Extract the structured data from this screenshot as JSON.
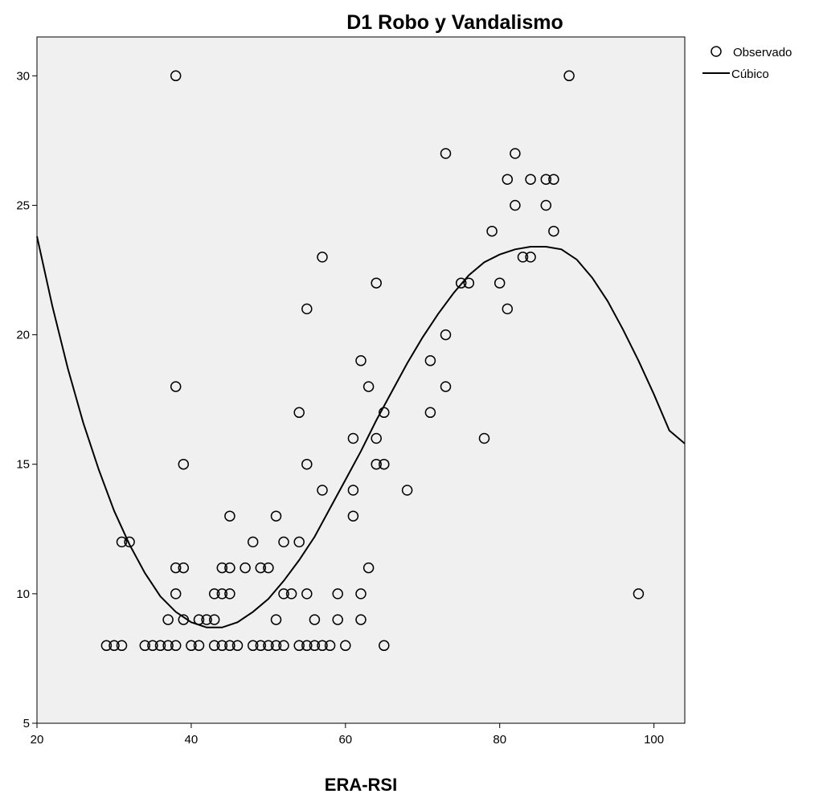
{
  "chart_data": {
    "type": "scatter",
    "title": "D1 Robo y Vandalismo",
    "xlabel": "ERA-RSI",
    "ylabel": "",
    "xlim": [
      20,
      104
    ],
    "ylim": [
      5,
      31.5
    ],
    "xticks": [
      20,
      40,
      60,
      80,
      100
    ],
    "yticks": [
      5,
      10,
      15,
      20,
      25,
      30
    ],
    "grid": false,
    "legend_position": "top-right, outside plot",
    "legend": [
      {
        "label": "Observado",
        "marker": "open-circle"
      },
      {
        "label": "Cúbico",
        "marker": "line"
      }
    ],
    "colors": {
      "plot_background": "#f0f0f0",
      "marker": "#000000",
      "line": "#000000"
    },
    "series": [
      {
        "name": "Observado",
        "type": "scatter",
        "points": [
          [
            29,
            8
          ],
          [
            30,
            8
          ],
          [
            31,
            8
          ],
          [
            34,
            8
          ],
          [
            35,
            8
          ],
          [
            36,
            8
          ],
          [
            37,
            8
          ],
          [
            38,
            8
          ],
          [
            40,
            8
          ],
          [
            41,
            8
          ],
          [
            43,
            8
          ],
          [
            44,
            8
          ],
          [
            45,
            8
          ],
          [
            46,
            8
          ],
          [
            48,
            8
          ],
          [
            49,
            8
          ],
          [
            50,
            8
          ],
          [
            51,
            8
          ],
          [
            52,
            8
          ],
          [
            54,
            8
          ],
          [
            55,
            8
          ],
          [
            56,
            8
          ],
          [
            57,
            8
          ],
          [
            58,
            8
          ],
          [
            60,
            8
          ],
          [
            65,
            8
          ],
          [
            37,
            9
          ],
          [
            39,
            9
          ],
          [
            41,
            9
          ],
          [
            42,
            9
          ],
          [
            43,
            9
          ],
          [
            51,
            9
          ],
          [
            56,
            9
          ],
          [
            59,
            9
          ],
          [
            62,
            9
          ],
          [
            38,
            10
          ],
          [
            43,
            10
          ],
          [
            44,
            10
          ],
          [
            45,
            10
          ],
          [
            52,
            10
          ],
          [
            53,
            10
          ],
          [
            55,
            10
          ],
          [
            59,
            10
          ],
          [
            62,
            10
          ],
          [
            98,
            10
          ],
          [
            38,
            11
          ],
          [
            39,
            11
          ],
          [
            44,
            11
          ],
          [
            45,
            11
          ],
          [
            47,
            11
          ],
          [
            49,
            11
          ],
          [
            50,
            11
          ],
          [
            63,
            11
          ],
          [
            31,
            12
          ],
          [
            32,
            12
          ],
          [
            48,
            12
          ],
          [
            52,
            12
          ],
          [
            54,
            12
          ],
          [
            45,
            13
          ],
          [
            51,
            13
          ],
          [
            61,
            13
          ],
          [
            57,
            14
          ],
          [
            61,
            14
          ],
          [
            68,
            14
          ],
          [
            39,
            15
          ],
          [
            55,
            15
          ],
          [
            64,
            15
          ],
          [
            65,
            15
          ],
          [
            61,
            16
          ],
          [
            64,
            16
          ],
          [
            78,
            16
          ],
          [
            54,
            17
          ],
          [
            65,
            17
          ],
          [
            71,
            17
          ],
          [
            38,
            18
          ],
          [
            63,
            18
          ],
          [
            73,
            18
          ],
          [
            62,
            19
          ],
          [
            71,
            19
          ],
          [
            73,
            20
          ],
          [
            55,
            21
          ],
          [
            81,
            21
          ],
          [
            64,
            22
          ],
          [
            75,
            22
          ],
          [
            76,
            22
          ],
          [
            80,
            22
          ],
          [
            57,
            23
          ],
          [
            83,
            23
          ],
          [
            84,
            23
          ],
          [
            79,
            24
          ],
          [
            87,
            24
          ],
          [
            82,
            25
          ],
          [
            86,
            25
          ],
          [
            81,
            26
          ],
          [
            84,
            26
          ],
          [
            86,
            26
          ],
          [
            87,
            26
          ],
          [
            73,
            27
          ],
          [
            82,
            27
          ],
          [
            38,
            30
          ],
          [
            89,
            30
          ]
        ]
      },
      {
        "name": "Cúbico",
        "type": "line",
        "x": [
          20,
          22,
          24,
          26,
          28,
          30,
          32,
          34,
          36,
          38,
          40,
          42,
          44,
          46,
          48,
          50,
          52,
          54,
          56,
          58,
          60,
          62,
          64,
          66,
          68,
          70,
          72,
          74,
          76,
          78,
          80,
          82,
          84,
          86,
          88,
          90,
          92,
          94,
          96,
          98,
          100,
          102,
          104
        ],
        "y": [
          23.8,
          21.1,
          18.7,
          16.6,
          14.8,
          13.2,
          11.9,
          10.8,
          9.9,
          9.3,
          8.9,
          8.7,
          8.7,
          8.9,
          9.3,
          9.8,
          10.5,
          11.3,
          12.2,
          13.3,
          14.4,
          15.5,
          16.7,
          17.8,
          18.9,
          19.9,
          20.8,
          21.6,
          22.3,
          22.8,
          23.1,
          23.3,
          23.4,
          23.4,
          23.3,
          22.9,
          22.2,
          21.3,
          20.2,
          19.0,
          17.7,
          16.3,
          15.8
        ]
      }
    ]
  }
}
